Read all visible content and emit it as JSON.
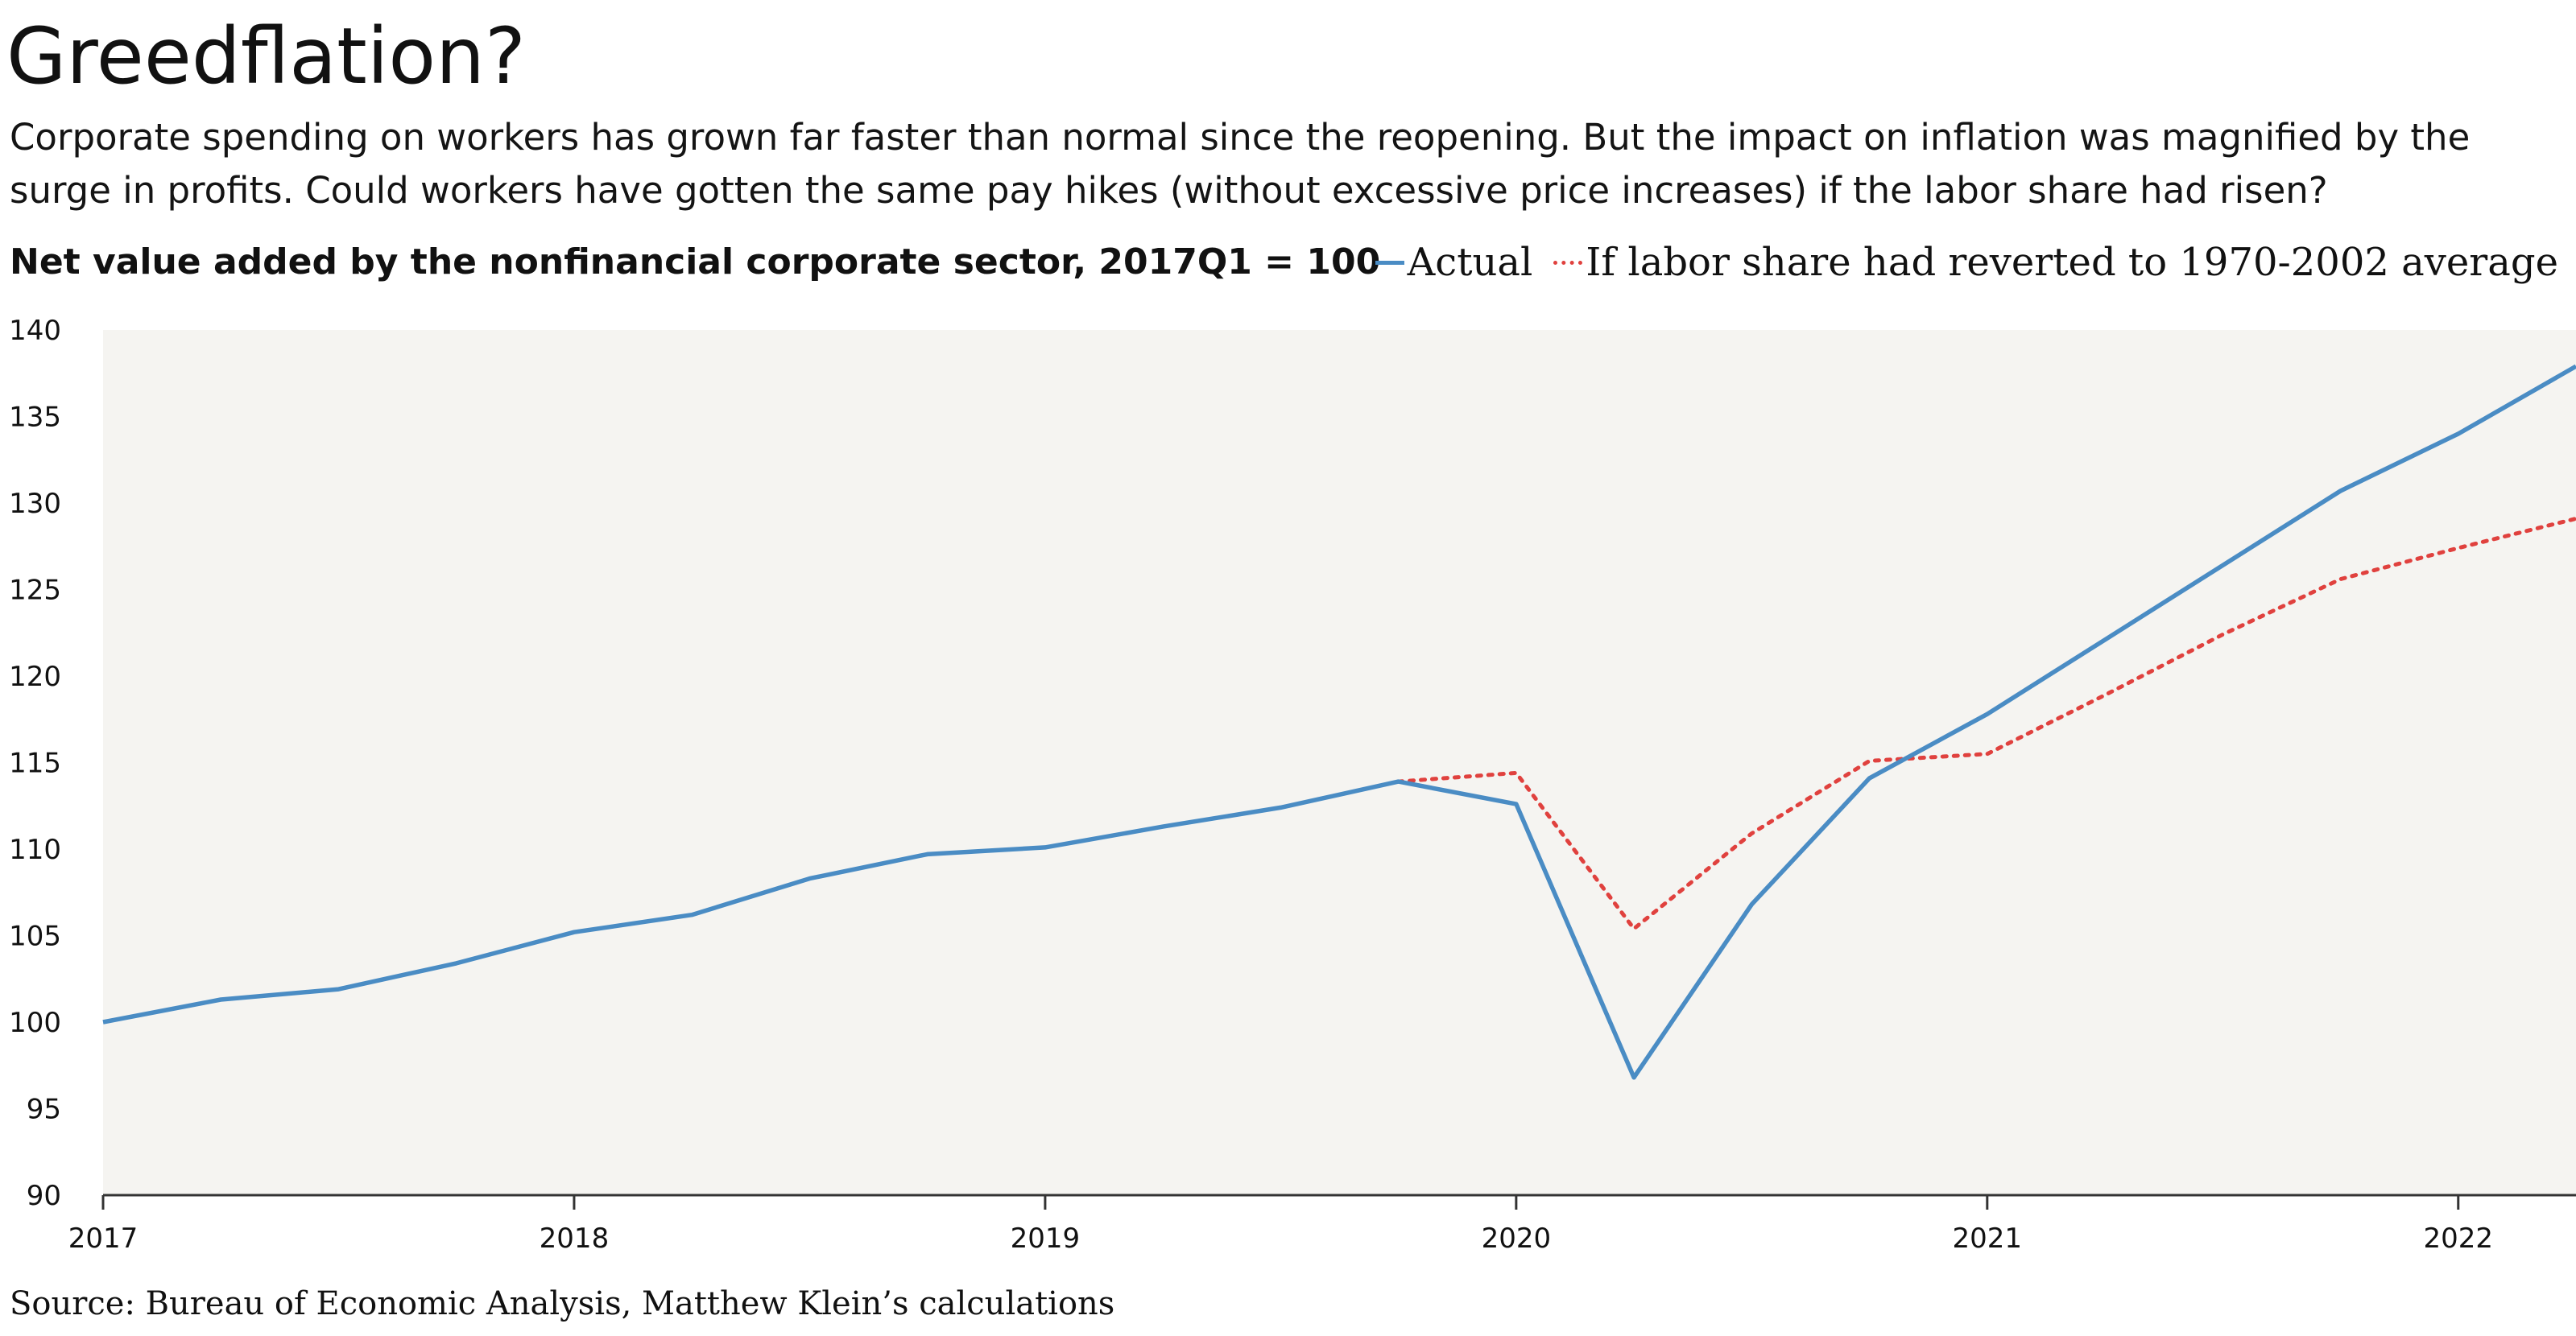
{
  "title": "Greedflation?",
  "subtitle": "Corporate spending on workers has grown far faster than normal since the reopening. But the impact on inflation was magnified by the surge in profits. Could workers have gotten the same pay hikes (without excessive price increases) if the labor share had risen?",
  "description": "Net value added by the nonfinancial corporate sector, 2017Q1 = 100",
  "legend": {
    "actual": "Actual",
    "counterfactual": "If labor share had reverted to 1970-2002 average"
  },
  "source": "Source: Bureau of Economic Analysis, Matthew Klein’s calculations",
  "colors": {
    "actual": "#4a8cc4",
    "counterfactual": "#e0413e",
    "plot_background": "#f5f4f1",
    "axis": "#333333"
  },
  "chart_data": {
    "type": "line",
    "title": "Greedflation?",
    "xlabel": "",
    "ylabel": "",
    "ylim": [
      90,
      140
    ],
    "yticks": [
      90,
      95,
      100,
      105,
      110,
      115,
      120,
      125,
      130,
      135,
      140
    ],
    "xlim": [
      2017.0,
      2022.25
    ],
    "xticks": [
      2017,
      2018,
      2019,
      2020,
      2021,
      2022
    ],
    "xtick_labels": [
      "2017",
      "2018",
      "2019",
      "2020",
      "2021",
      "2022"
    ],
    "grid": false,
    "legend_position": "top-right",
    "series": [
      {
        "name": "Actual",
        "style": "solid",
        "x": [
          2017.0,
          2017.25,
          2017.5,
          2017.75,
          2018.0,
          2018.25,
          2018.5,
          2018.75,
          2019.0,
          2019.25,
          2019.5,
          2019.75,
          2020.0,
          2020.25,
          2020.5,
          2020.75,
          2021.0,
          2021.25,
          2021.5,
          2021.75,
          2022.0,
          2022.25
        ],
        "values": [
          100.0,
          101.3,
          101.9,
          103.4,
          105.2,
          106.2,
          108.3,
          109.7,
          110.1,
          111.3,
          112.4,
          113.9,
          112.6,
          96.8,
          106.8,
          114.1,
          117.8,
          122.1,
          126.4,
          130.7,
          134.0,
          137.9
        ]
      },
      {
        "name": "If labor share had reverted to 1970-2002 average",
        "style": "dotted",
        "x": [
          2019.75,
          2020.0,
          2020.25,
          2020.5,
          2020.75,
          2021.0,
          2021.25,
          2021.5,
          2021.75,
          2022.0,
          2022.25
        ],
        "values": [
          113.9,
          114.4,
          105.4,
          110.9,
          115.1,
          115.5,
          118.9,
          122.4,
          125.6,
          127.4,
          129.1
        ]
      }
    ]
  }
}
